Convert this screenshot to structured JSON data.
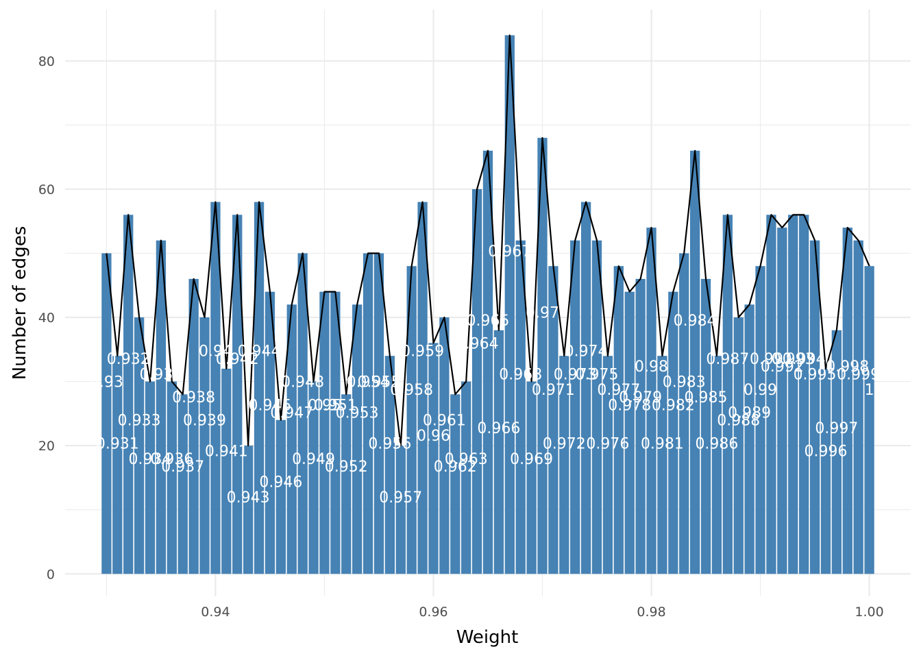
{
  "chart_data": {
    "type": "bar",
    "title": "",
    "xlabel": "Weight",
    "ylabel": "Number of edges",
    "xlim": [
      0.9262,
      1.0038
    ],
    "ylim": [
      -3.5,
      88
    ],
    "x_ticks": [
      0.94,
      0.96,
      0.98,
      1.0
    ],
    "x_tick_labels": [
      "0.94",
      "0.96",
      "0.98",
      "1.00"
    ],
    "y_ticks": [
      0,
      20,
      40,
      60,
      80
    ],
    "y_tick_labels": [
      "0",
      "20",
      "40",
      "60",
      "80"
    ],
    "grid": true,
    "legend": "none",
    "colors": {
      "bar": "#4682B4",
      "line": "#000000",
      "label": "#ffffff",
      "grid": "#ebebeb"
    },
    "series": [
      {
        "x": [
          0.93,
          0.931,
          0.932,
          0.933,
          0.934,
          0.935,
          0.936,
          0.937,
          0.938,
          0.939,
          0.94,
          0.941,
          0.942,
          0.943,
          0.944,
          0.945,
          0.946,
          0.947,
          0.948,
          0.949,
          0.95,
          0.951,
          0.952,
          0.953,
          0.954,
          0.955,
          0.956,
          0.957,
          0.958,
          0.959,
          0.96,
          0.961,
          0.962,
          0.963,
          0.964,
          0.965,
          0.966,
          0.967,
          0.968,
          0.969,
          0.97,
          0.971,
          0.972,
          0.973,
          0.974,
          0.975,
          0.976,
          0.977,
          0.978,
          0.979,
          0.98,
          0.981,
          0.982,
          0.983,
          0.984,
          0.985,
          0.986,
          0.987,
          0.988,
          0.989,
          0.99,
          0.991,
          0.992,
          0.993,
          0.994,
          0.995,
          0.996,
          0.997,
          0.998,
          0.999,
          1.0
        ],
        "values": [
          50,
          34,
          56,
          40,
          30,
          52,
          30,
          28,
          46,
          40,
          58,
          32,
          56,
          20,
          58,
          44,
          24,
          42,
          50,
          30,
          44,
          44,
          28,
          42,
          50,
          50,
          34,
          20,
          48,
          58,
          36,
          40,
          28,
          30,
          60,
          66,
          38,
          84,
          52,
          30,
          68,
          48,
          34,
          52,
          58,
          52,
          34,
          48,
          44,
          46,
          54,
          34,
          44,
          50,
          66,
          46,
          34,
          56,
          40,
          42,
          48,
          56,
          54,
          56,
          56,
          52,
          32,
          38,
          54,
          52,
          48
        ],
        "labels": [
          "0.93",
          "0.931",
          "0.932",
          "0.933",
          "0.934",
          "0.935",
          "0.936",
          "0.937",
          "0.938",
          "0.939",
          "0.94",
          "0.941",
          "0.942",
          "0.943",
          "0.944",
          "0.945",
          "0.946",
          "0.947",
          "0.948",
          "0.949",
          "0.95",
          "0.951",
          "0.952",
          "0.953",
          "0.954",
          "0.955",
          "0.956",
          "0.957",
          "0.958",
          "0.959",
          "0.96",
          "0.961",
          "0.962",
          "0.963",
          "0.964",
          "0.965",
          "0.966",
          "0.967",
          "0.968",
          "0.969",
          "0.97",
          "0.971",
          "0.972",
          "0.973",
          "0.974",
          "0.975",
          "0.976",
          "0.977",
          "0.978",
          "0.979",
          "0.98",
          "0.981",
          "0.982",
          "0.983",
          "0.984",
          "0.985",
          "0.986",
          "0.987",
          "0.988",
          "0.989",
          "0.99",
          "0.991",
          "0.992",
          "0.993",
          "0.994",
          "0.995",
          "0.996",
          "0.997",
          "0.998",
          "0.999",
          "1"
        ]
      }
    ]
  }
}
